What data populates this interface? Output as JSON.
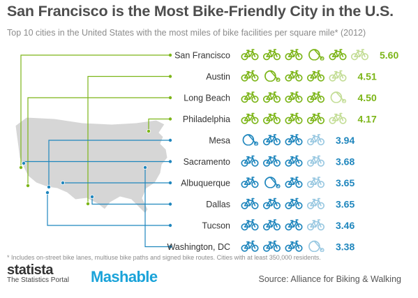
{
  "title": "San Francisco is the Most Bike-Friendly City in the U.S.",
  "subtitle": "Top 10 cities in the United States with the most miles of bike facilities per square mile* (2012)",
  "footnote": "* Includes on-street bike lanes, multiuse bike paths and signed bike routes. Cities with at least 350,000 residents.",
  "brand": {
    "statista_name": "statista",
    "statista_tagline": "The Statistics Portal",
    "mashable": "Mashable"
  },
  "source": "Source: Alliance for Biking & Walking",
  "colors": {
    "green": "#7cb518",
    "blue": "#1f86bd",
    "map": "#d6d6d6",
    "map_outline": "#ffffff",
    "dot_green": "#7cb518",
    "dot_blue": "#1f86bd"
  },
  "icon_name": "bicycle-icon",
  "chart_data": {
    "type": "bar",
    "categories": [
      "San Francisco",
      "Austin",
      "Long Beach",
      "Philadelphia",
      "Mesa",
      "Sacramento",
      "Albuquerque",
      "Dallas",
      "Tucson",
      "Washington, DC"
    ],
    "values": [
      5.6,
      4.51,
      4.5,
      4.17,
      3.94,
      3.68,
      3.65,
      3.65,
      3.46,
      3.38
    ],
    "value_labels": [
      "5.60",
      "4.51",
      "4.50",
      "4.17",
      "3.94",
      "3.68",
      "3.65",
      "3.65",
      "3.46",
      "3.38"
    ],
    "color_groups": [
      "green",
      "green",
      "green",
      "green",
      "blue",
      "blue",
      "blue",
      "blue",
      "blue",
      "blue"
    ],
    "unit": "miles of bike facilities per square mile"
  }
}
